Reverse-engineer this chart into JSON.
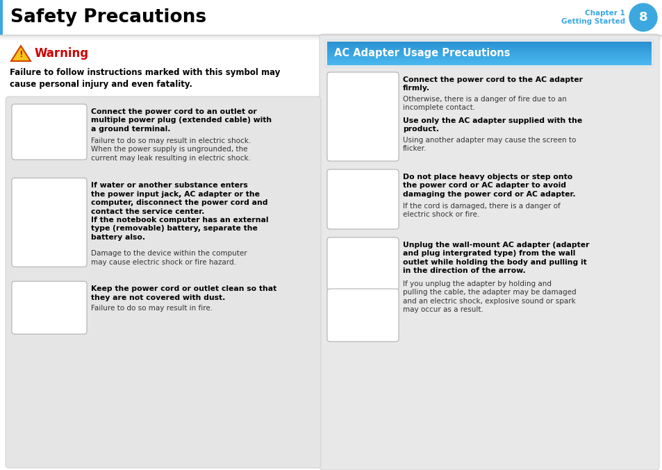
{
  "title": "Safety Precautions",
  "chapter": "Chapter 1",
  "chapter_sub": "Getting Started",
  "chapter_num": "8",
  "bg_color": "#ffffff",
  "header_bar_color": "#3da8e0",
  "header_left_accent": "#3da8e0",
  "warning_color": "#cc0000",
  "warning_title": "Warning",
  "warning_bold_text": "Failure to follow instructions marked with this symbol may\ncause personal injury and even fatality.",
  "left_items": [
    {
      "bold": "Connect the power cord to an outlet or\nmultiple power plug (extended cable) with\na ground terminal.",
      "normal": "Failure to do so may result in electric shock.\nWhen the power supply is ungrounded, the\ncurrent may leak resulting in electric shock."
    },
    {
      "bold": "If water or another substance enters\nthe power input jack, AC adapter or the\ncomputer, disconnect the power cord and\ncontact the service center.\nIf the notebook computer has an external\ntype (removable) battery, separate the\nbattery also.",
      "normal": "Damage to the device within the computer\nmay cause electric shock or fire hazard."
    },
    {
      "bold": "Keep the power cord or outlet clean so that\nthey are not covered with dust.",
      "normal": "Failure to do so may result in fire."
    }
  ],
  "right_section_title": "AC Adapter Usage Precautions",
  "right_section_title_color": "#ffffff",
  "right_section_title_bg_top": "#4ab8f0",
  "right_section_title_bg_bot": "#2a98d8",
  "right_item1_bold1": "Connect the power cord to the AC adapter\nfirmly.",
  "right_item1_normal1": "Otherwise, there is a danger of fire due to an\nincomplete contact.",
  "right_item1_bold2": "Use only the AC adapter supplied with the\nproduct.",
  "right_item1_normal2": "Using another adapter may cause the screen to\nflicker.",
  "right_item2_bold": "Do not place heavy objects or step onto\nthe power cord or AC adapter to avoid\ndamaging the power cord or AC adapter.",
  "right_item2_normal": "If the cord is damaged, there is a danger of\nelectric shock or fire.",
  "right_item3_bold": "Unplug the wall-mount AC adapter (adapter\nand plug intergrated type) from the wall\noutlet while holding the body and pulling it\nin the direction of the arrow.",
  "right_item3_normal": "If you unplug the adapter by holding and\npulling the cable, the adapter may be damaged\nand an electric shock, explosive sound or spark\nmay occur as a result."
}
